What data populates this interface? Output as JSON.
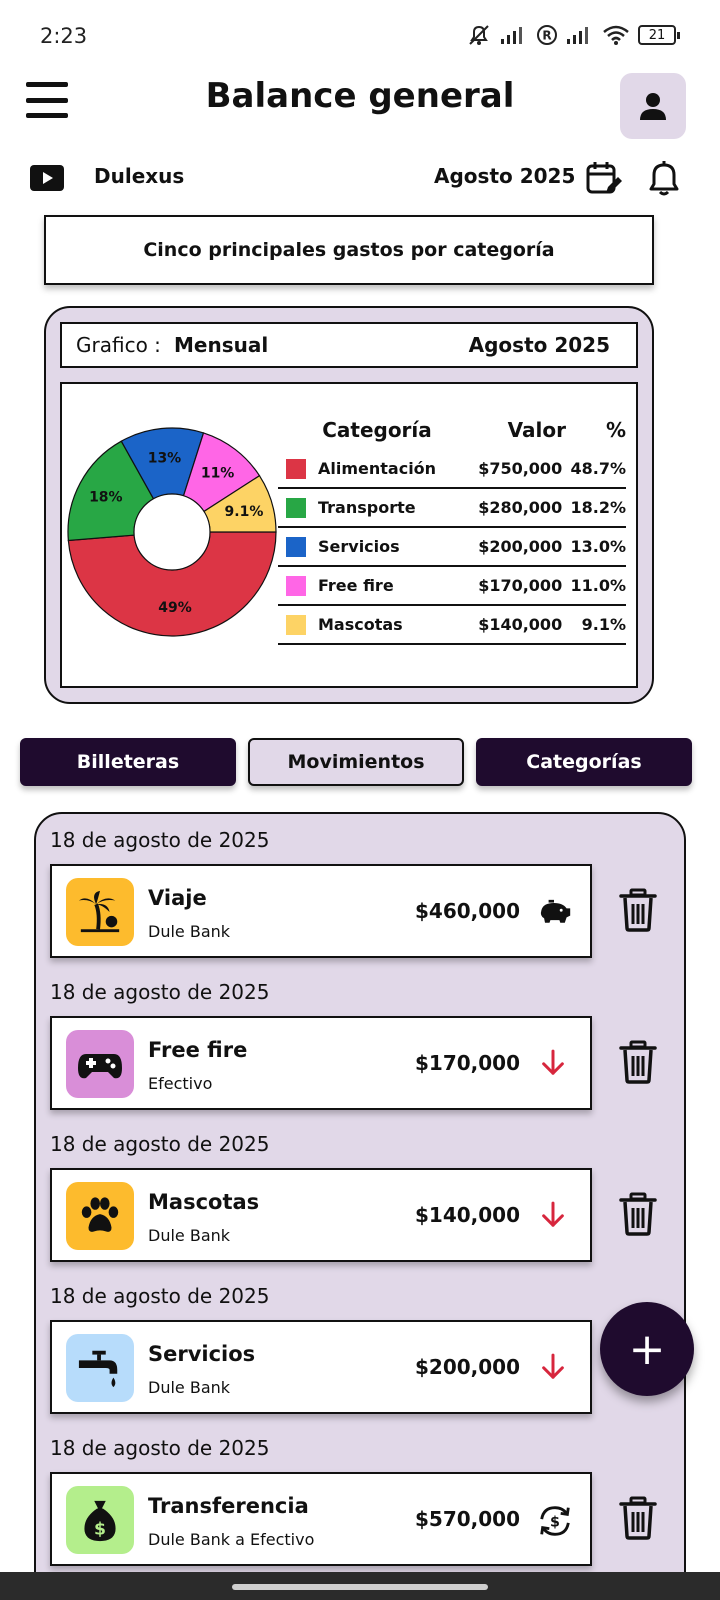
{
  "status": {
    "time": "2:23",
    "battery": "21"
  },
  "header": {
    "title": "Balance general"
  },
  "subbar": {
    "channel": "Dulexus",
    "month": "Agosto 2025"
  },
  "section_title": "Cinco principales gastos por categoría",
  "chart_panel": {
    "label": "Grafico :",
    "mode": "Mensual",
    "period": "Agosto  2025",
    "legend_headers": {
      "category": "Categoría",
      "value": "Valor",
      "percent": "%"
    }
  },
  "chart_data": {
    "type": "pie",
    "donut": true,
    "slices": [
      {
        "category": "Alimentación",
        "value": "$750,000",
        "percent": "48.7%",
        "fraction": 0.487,
        "slice_label": "49%",
        "color": "#dc3545"
      },
      {
        "category": "Transporte",
        "value": "$280,000",
        "percent": "18.2%",
        "fraction": 0.182,
        "slice_label": "18%",
        "color": "#28a745"
      },
      {
        "category": "Servicios",
        "value": "$200,000",
        "percent": "13.0%",
        "fraction": 0.13,
        "slice_label": "13%",
        "color": "#1b64c8"
      },
      {
        "category": "Free fire",
        "value": "$170,000",
        "percent": "11.0%",
        "fraction": 0.11,
        "slice_label": "11%",
        "color": "#ff66e6"
      },
      {
        "category": "Mascotas",
        "value": "$140,000",
        "percent": "9.1%",
        "fraction": 0.091,
        "slice_label": "9.1%",
        "color": "#fdd365"
      }
    ]
  },
  "tabs": {
    "wallets": "Billeteras",
    "movements": "Movimientos",
    "categories": "Categorías"
  },
  "transactions": [
    {
      "date": "18 de agosto de 2025",
      "title": "Viaje",
      "subtitle": "Dule Bank",
      "amount": "$460,000",
      "icon": "palm-tree-icon",
      "icon_bg": "#fdbb2d",
      "kind": "piggy-bank-icon"
    },
    {
      "date": "18 de agosto de 2025",
      "title": "Free fire",
      "subtitle": "Efectivo",
      "amount": "$170,000",
      "icon": "gamepad-icon",
      "icon_bg": "#d98ed8",
      "kind": "down-arrow-icon"
    },
    {
      "date": "18 de agosto de 2025",
      "title": "Mascotas",
      "subtitle": "Dule Bank",
      "amount": "$140,000",
      "icon": "paw-icon",
      "icon_bg": "#fdbb2d",
      "kind": "down-arrow-icon"
    },
    {
      "date": "18 de agosto de 2025",
      "title": "Servicios",
      "subtitle": "Dule Bank",
      "amount": "$200,000",
      "icon": "faucet-icon",
      "icon_bg": "#b7dcfb",
      "kind": "down-arrow-icon"
    },
    {
      "date": "18 de agosto de 2025",
      "title": "Transferencia",
      "subtitle": "Dule Bank a Efectivo",
      "amount": "$570,000",
      "icon": "money-bag-icon",
      "icon_bg": "#b4ee8c",
      "kind": "transfer-icon"
    }
  ],
  "fab": {
    "label": "+"
  },
  "colors": {
    "accent_dark": "#1f0b2e",
    "panel_lavender": "#e1d8e8",
    "expense_red": "#d7263d"
  }
}
